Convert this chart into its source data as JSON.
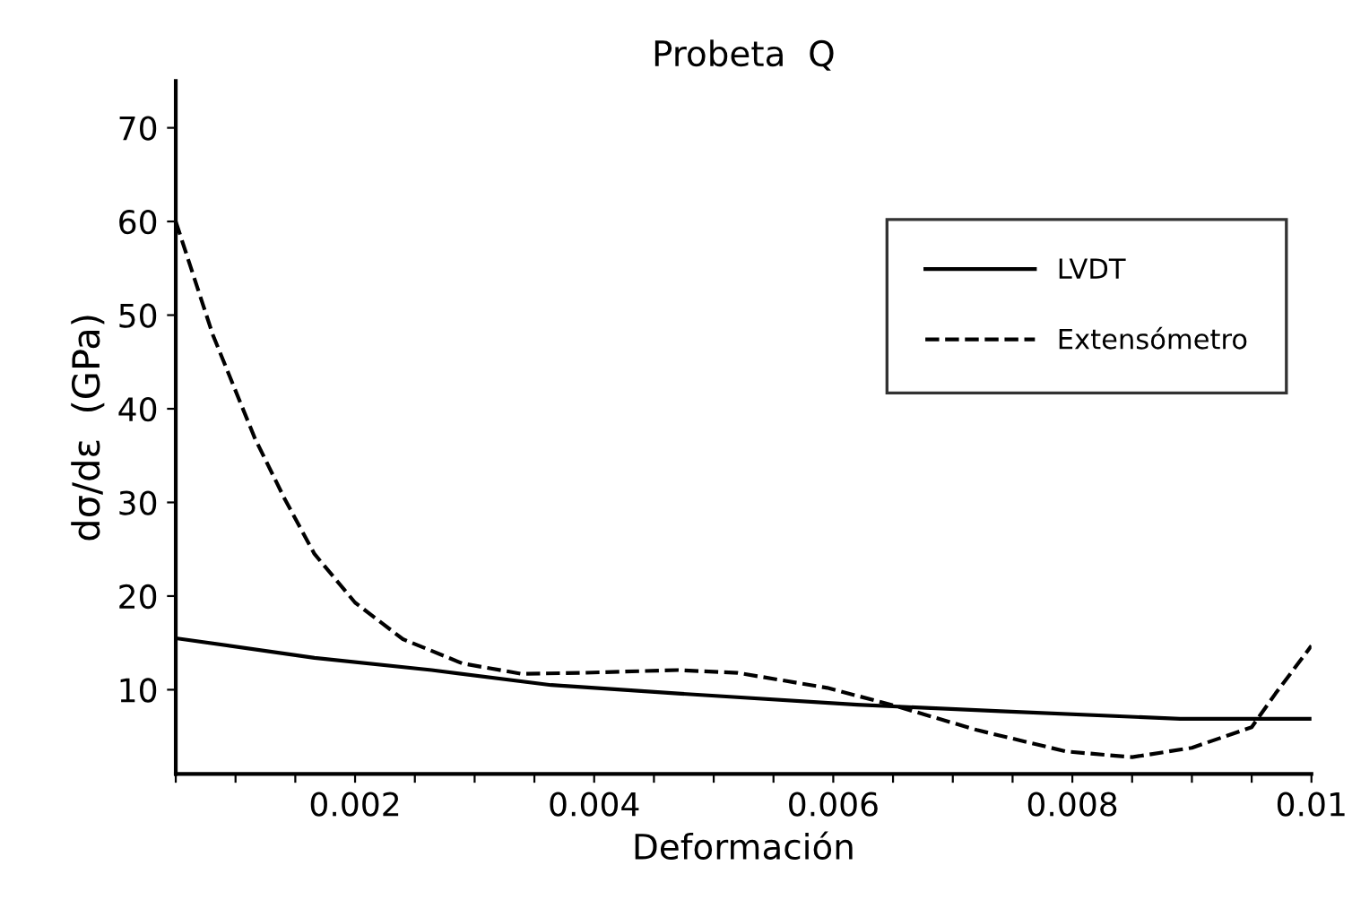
{
  "chart_data": {
    "type": "line",
    "title": "Probeta  Q",
    "xlabel": "Deformación",
    "ylabel": "dσ/dε  (GPa)",
    "xlim": [
      0.0005,
      0.01
    ],
    "ylim": [
      1,
      75
    ],
    "xticks": [
      {
        "value": 0.0005,
        "label": null
      },
      {
        "value": 0.001,
        "label": null
      },
      {
        "value": 0.0015,
        "label": null
      },
      0.002,
      {
        "value": 0.0025,
        "label": null
      },
      {
        "value": 0.003,
        "label": null
      },
      {
        "value": 0.0035,
        "label": null
      },
      0.004,
      {
        "value": 0.0045,
        "label": null
      },
      {
        "value": 0.005,
        "label": null
      },
      {
        "value": 0.0055,
        "label": null
      },
      0.006,
      {
        "value": 0.0065,
        "label": null
      },
      {
        "value": 0.007,
        "label": null
      },
      {
        "value": 0.0075,
        "label": null
      },
      0.008,
      {
        "value": 0.0085,
        "label": null
      },
      {
        "value": 0.009,
        "label": null
      },
      {
        "value": 0.0095,
        "label": null
      },
      0.01
    ],
    "yticks": [
      10,
      20,
      30,
      40,
      50,
      60,
      70
    ],
    "grid": false,
    "legend": "top right",
    "marker": "none",
    "series": [
      {
        "name": "LVDT",
        "color": "#000000",
        "line_style": "solid",
        "x": [
          0.0005,
          0.00166,
          0.00264,
          0.00364,
          0.0047,
          0.0062,
          0.0074,
          0.0089,
          0.01
        ],
        "values": [
          15.5,
          13.4,
          12.1,
          10.5,
          9.6,
          8.4,
          7.7,
          6.9,
          6.9
        ]
      },
      {
        "name": "Extensómetro",
        "color": "#000000",
        "line_style": "dashed",
        "x": [
          0.0005,
          0.00081,
          0.00116,
          0.00141,
          0.00166,
          0.002,
          0.0024,
          0.0029,
          0.00339,
          0.00389,
          0.0047,
          0.0052,
          0.00595,
          0.00654,
          0.0072,
          0.00795,
          0.0085,
          0.009,
          0.0095,
          0.0097,
          0.01
        ],
        "values": [
          60,
          47.9,
          36.9,
          30.4,
          24.5,
          19.3,
          15.4,
          12.8,
          11.7,
          11.8,
          12.1,
          11.8,
          10.2,
          8.2,
          5.7,
          3.4,
          2.8,
          3.8,
          6.0,
          9.6,
          14.7
        ]
      }
    ]
  }
}
